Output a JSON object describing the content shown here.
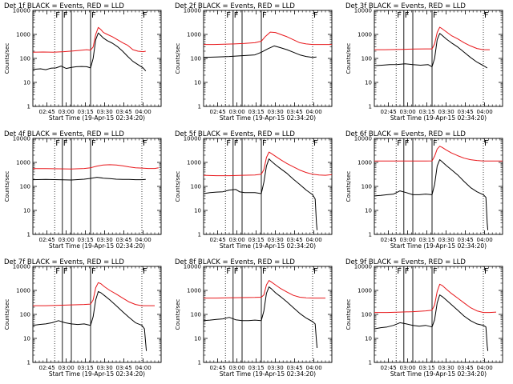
{
  "colors": {
    "events": "#000000",
    "lld": "#e8171b",
    "axes": "#000000"
  },
  "shared": {
    "x_tick_labels": [
      "02:45",
      "03:00",
      "03:15",
      "03:30",
      "03:45",
      "04:00"
    ],
    "y_tick_labels": [
      "1",
      "10",
      "100",
      "1000",
      "10000"
    ],
    "ylabel": "Counts/sec",
    "xlabel": "Start Time (19-Apr-15 02:34:20)",
    "marker_labels": [
      "F",
      "F",
      "F",
      "F"
    ]
  },
  "chart_data": [
    {
      "type": "line",
      "title": "Det 1f BLACK = Events, RED = LLD",
      "ylog": true,
      "ylim": [
        1,
        10000
      ],
      "x_unit": "minutes after 02:34:20",
      "xlim": [
        0,
        100
      ],
      "dotted_vlines": [
        17,
        85
      ],
      "solid_vlines": [
        23,
        30,
        45
      ],
      "series": [
        {
          "name": "LLD",
          "color": "#e8171b",
          "x": [
            0,
            8,
            16,
            24,
            32,
            38,
            42,
            45,
            47,
            49,
            51,
            53,
            55,
            58,
            62,
            66,
            70,
            74,
            78,
            82,
            86,
            88
          ],
          "y": [
            180,
            185,
            180,
            190,
            205,
            220,
            230,
            220,
            300,
            1000,
            1950,
            1600,
            1200,
            1000,
            800,
            600,
            450,
            350,
            230,
            200,
            190,
            200
          ]
        },
        {
          "name": "Events",
          "color": "#000000",
          "x": [
            0,
            6,
            10,
            14,
            18,
            22,
            26,
            30,
            34,
            38,
            42,
            45,
            47,
            49,
            51,
            53,
            55,
            58,
            62,
            66,
            70,
            74,
            78,
            82,
            86,
            88
          ],
          "y": [
            35,
            37,
            34,
            39,
            40,
            48,
            38,
            42,
            45,
            46,
            45,
            40,
            100,
            600,
            1150,
            900,
            700,
            550,
            430,
            310,
            200,
            120,
            75,
            55,
            40,
            30
          ]
        }
      ]
    },
    {
      "type": "line",
      "title": "Det 2f BLACK = Events, RED = LLD",
      "ylog": true,
      "ylim": [
        1,
        10000
      ],
      "x_unit": "minutes after 02:34:20",
      "xlim": [
        0,
        100
      ],
      "dotted_vlines": [
        17,
        85
      ],
      "solid_vlines": [
        23,
        30,
        45
      ],
      "series": [
        {
          "name": "LLD",
          "color": "#e8171b",
          "x": [
            0,
            8,
            16,
            24,
            32,
            40,
            45,
            48,
            52,
            56,
            60,
            65,
            70,
            75,
            80,
            85,
            90,
            100
          ],
          "y": [
            380,
            380,
            390,
            400,
            420,
            450,
            520,
            800,
            1250,
            1200,
            1000,
            800,
            600,
            450,
            400,
            380,
            380,
            380
          ]
        },
        {
          "name": "Events",
          "color": "#000000",
          "x": [
            0,
            10,
            20,
            30,
            40,
            45,
            50,
            55,
            60,
            65,
            70,
            75,
            80,
            85,
            88
          ],
          "y": [
            110,
            115,
            120,
            130,
            140,
            180,
            250,
            330,
            280,
            230,
            180,
            140,
            120,
            110,
            115
          ]
        }
      ]
    },
    {
      "type": "line",
      "title": "Det 3f BLACK = Events, RED = LLD",
      "ylog": true,
      "ylim": [
        1,
        10000
      ],
      "x_unit": "minutes after 02:34:20",
      "xlim": [
        0,
        100
      ],
      "dotted_vlines": [
        17,
        85
      ],
      "solid_vlines": [
        23,
        30,
        45
      ],
      "series": [
        {
          "name": "LLD",
          "color": "#e8171b",
          "x": [
            0,
            8,
            16,
            24,
            32,
            40,
            45,
            47,
            49,
            51,
            53,
            56,
            60,
            65,
            70,
            75,
            80,
            85,
            90
          ],
          "y": [
            230,
            230,
            235,
            240,
            245,
            250,
            250,
            400,
            1200,
            2000,
            1700,
            1300,
            900,
            650,
            450,
            330,
            260,
            230,
            230
          ]
        },
        {
          "name": "Events",
          "color": "#000000",
          "x": [
            0,
            6,
            12,
            18,
            24,
            30,
            36,
            42,
            45,
            47,
            49,
            51,
            53,
            56,
            60,
            65,
            70,
            75,
            80,
            85,
            88
          ],
          "y": [
            50,
            52,
            55,
            56,
            60,
            55,
            52,
            55,
            45,
            100,
            600,
            1100,
            900,
            650,
            450,
            300,
            180,
            110,
            70,
            50,
            40
          ]
        }
      ]
    },
    {
      "type": "line",
      "title": "Det 4f BLACK = Events, RED = LLD",
      "ylog": true,
      "ylim": [
        1,
        10000
      ],
      "x_unit": "minutes after 02:34:20",
      "xlim": [
        0,
        100
      ],
      "dotted_vlines": [
        17,
        85
      ],
      "solid_vlines": [
        23,
        30,
        45
      ],
      "series": [
        {
          "name": "LLD",
          "color": "#e8171b",
          "x": [
            0,
            10,
            20,
            30,
            40,
            45,
            50,
            55,
            60,
            65,
            70,
            75,
            80,
            85,
            90,
            95,
            98
          ],
          "y": [
            550,
            550,
            540,
            530,
            560,
            600,
            700,
            780,
            800,
            780,
            720,
            650,
            600,
            580,
            560,
            560,
            600
          ]
        },
        {
          "name": "Events",
          "color": "#000000",
          "x": [
            0,
            10,
            20,
            30,
            40,
            45,
            50,
            55,
            60,
            65,
            70,
            75,
            80,
            85,
            88
          ],
          "y": [
            190,
            195,
            190,
            185,
            200,
            215,
            240,
            220,
            210,
            200,
            195,
            195,
            190,
            190,
            195
          ]
        }
      ]
    },
    {
      "type": "line",
      "title": "Det 5f BLACK = Events, RED = LLD",
      "ylog": true,
      "ylim": [
        1,
        10000
      ],
      "x_unit": "minutes after 02:34:20",
      "xlim": [
        0,
        100
      ],
      "dotted_vlines": [
        17,
        85
      ],
      "solid_vlines": [
        23,
        30,
        45
      ],
      "series": [
        {
          "name": "LLD",
          "color": "#e8171b",
          "x": [
            0,
            10,
            20,
            30,
            40,
            45,
            47,
            49,
            51,
            53,
            56,
            60,
            65,
            70,
            75,
            80,
            85,
            90,
            95,
            100
          ],
          "y": [
            290,
            280,
            280,
            290,
            300,
            320,
            500,
            1600,
            2700,
            2300,
            1800,
            1300,
            900,
            650,
            480,
            380,
            320,
            300,
            290,
            310
          ]
        },
        {
          "name": "Events",
          "color": "#000000",
          "x": [
            0,
            5,
            10,
            15,
            20,
            25,
            28,
            32,
            36,
            40,
            45,
            47,
            49,
            51,
            53,
            56,
            60,
            65,
            70,
            75,
            80,
            85,
            87,
            88,
            88.5
          ],
          "y": [
            50,
            55,
            58,
            60,
            70,
            75,
            60,
            55,
            55,
            55,
            50,
            150,
            700,
            1400,
            1100,
            800,
            550,
            350,
            200,
            120,
            70,
            45,
            30,
            3,
            1.5
          ]
        }
      ]
    },
    {
      "type": "line",
      "title": "Det 6f BLACK = Events, RED = LLD",
      "ylog": true,
      "ylim": [
        1,
        10000
      ],
      "x_unit": "minutes after 02:34:20",
      "xlim": [
        0,
        100
      ],
      "dotted_vlines": [
        17,
        85
      ],
      "solid_vlines": [
        23,
        30,
        45
      ],
      "series": [
        {
          "name": "LLD",
          "color": "#e8171b",
          "x": [
            0,
            10,
            20,
            30,
            40,
            45,
            47,
            49,
            51,
            53,
            56,
            60,
            65,
            70,
            75,
            80,
            85,
            90,
            100
          ],
          "y": [
            1150,
            1150,
            1150,
            1150,
            1150,
            1160,
            1800,
            3600,
            4700,
            4200,
            3300,
            2500,
            1900,
            1500,
            1300,
            1200,
            1150,
            1150,
            1150
          ]
        },
        {
          "name": "Events",
          "color": "#000000",
          "x": [
            0,
            5,
            10,
            15,
            20,
            25,
            30,
            35,
            40,
            45,
            47,
            49,
            51,
            53,
            56,
            60,
            65,
            70,
            75,
            80,
            85,
            87,
            88,
            88.5
          ],
          "y": [
            40,
            42,
            45,
            48,
            65,
            55,
            45,
            45,
            48,
            45,
            120,
            700,
            1300,
            1050,
            750,
            500,
            300,
            160,
            90,
            60,
            45,
            35,
            3,
            1.5
          ]
        }
      ]
    },
    {
      "type": "line",
      "title": "Det 7f BLACK = Events, RED = LLD",
      "ylog": true,
      "ylim": [
        1,
        10000
      ],
      "x_unit": "minutes after 02:34:20",
      "xlim": [
        0,
        100
      ],
      "dotted_vlines": [
        17,
        85
      ],
      "solid_vlines": [
        23,
        30,
        45
      ],
      "series": [
        {
          "name": "LLD",
          "color": "#e8171b",
          "x": [
            0,
            10,
            20,
            30,
            40,
            45,
            47,
            49,
            51,
            53,
            56,
            60,
            65,
            70,
            75,
            80,
            85,
            90,
            95
          ],
          "y": [
            230,
            230,
            240,
            250,
            260,
            270,
            400,
            1300,
            2100,
            1900,
            1400,
            1000,
            700,
            480,
            330,
            260,
            230,
            230,
            230
          ]
        },
        {
          "name": "Events",
          "color": "#000000",
          "x": [
            0,
            5,
            10,
            15,
            20,
            25,
            30,
            35,
            40,
            45,
            47,
            49,
            51,
            53,
            56,
            60,
            65,
            70,
            75,
            80,
            85,
            87,
            88,
            88.5
          ],
          "y": [
            35,
            38,
            40,
            45,
            55,
            45,
            40,
            38,
            40,
            35,
            80,
            400,
            900,
            800,
            600,
            400,
            230,
            130,
            75,
            45,
            35,
            25,
            6,
            3
          ]
        }
      ]
    },
    {
      "type": "line",
      "title": "Det 8f BLACK = Events, RED = LLD",
      "ylog": true,
      "ylim": [
        1,
        10000
      ],
      "x_unit": "minutes after 02:34:20",
      "xlim": [
        0,
        100
      ],
      "dotted_vlines": [
        17,
        85
      ],
      "solid_vlines": [
        23,
        30,
        45
      ],
      "series": [
        {
          "name": "LLD",
          "color": "#e8171b",
          "x": [
            0,
            10,
            20,
            30,
            40,
            45,
            47,
            49,
            51,
            53,
            56,
            60,
            65,
            70,
            75,
            80,
            85,
            90,
            95
          ],
          "y": [
            480,
            480,
            490,
            500,
            510,
            520,
            650,
            1700,
            2600,
            2200,
            1700,
            1200,
            850,
            620,
            520,
            490,
            480,
            480,
            480
          ]
        },
        {
          "name": "Events",
          "color": "#000000",
          "x": [
            0,
            5,
            10,
            15,
            20,
            25,
            30,
            35,
            40,
            45,
            47,
            49,
            51,
            53,
            56,
            60,
            65,
            70,
            75,
            80,
            85,
            87,
            88,
            88.5
          ],
          "y": [
            55,
            58,
            62,
            65,
            75,
            60,
            55,
            55,
            58,
            55,
            140,
            750,
            1400,
            1150,
            800,
            550,
            330,
            190,
            110,
            70,
            50,
            40,
            8,
            4
          ]
        }
      ]
    },
    {
      "type": "line",
      "title": "Det 9f BLACK = Events, RED = LLD",
      "ylog": true,
      "ylim": [
        1,
        10000
      ],
      "x_unit": "minutes after 02:34:20",
      "xlim": [
        0,
        100
      ],
      "dotted_vlines": [
        17,
        85
      ],
      "solid_vlines": [
        23,
        30,
        45
      ],
      "series": [
        {
          "name": "LLD",
          "color": "#e8171b",
          "x": [
            0,
            10,
            20,
            30,
            40,
            45,
            47,
            49,
            51,
            53,
            56,
            60,
            65,
            70,
            75,
            80,
            85,
            90,
            95
          ],
          "y": [
            120,
            120,
            125,
            130,
            140,
            150,
            250,
            900,
            1800,
            1600,
            1150,
            750,
            480,
            300,
            190,
            140,
            120,
            120,
            125
          ]
        },
        {
          "name": "Events",
          "color": "#000000",
          "x": [
            0,
            5,
            10,
            15,
            20,
            25,
            30,
            35,
            40,
            45,
            47,
            49,
            51,
            53,
            56,
            60,
            65,
            70,
            75,
            80,
            85,
            87,
            88,
            88.5
          ],
          "y": [
            25,
            28,
            30,
            35,
            45,
            40,
            35,
            32,
            35,
            30,
            60,
            300,
            650,
            550,
            400,
            260,
            150,
            85,
            55,
            40,
            35,
            30,
            5,
            3
          ]
        }
      ]
    }
  ]
}
